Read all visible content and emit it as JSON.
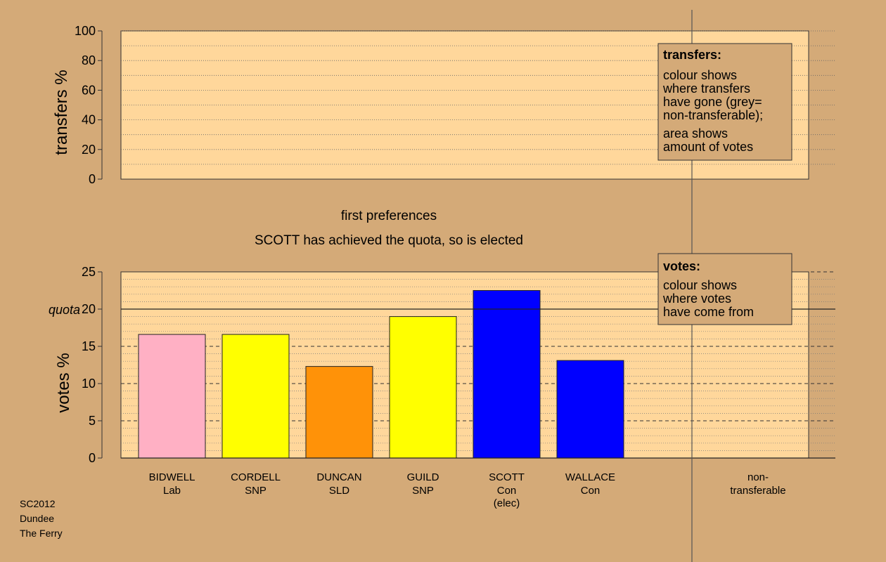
{
  "footer": {
    "line1": "SC2012",
    "line2": "Dundee",
    "line3": "The Ferry"
  },
  "status": {
    "stage": "first preferences",
    "message": "SCOTT has achieved the quota, so is elected"
  },
  "legend_transfers": {
    "title": "transfers:",
    "lines": [
      "colour shows",
      "where transfers",
      "have gone (grey=",
      "non-transferable);"
    ],
    "lines2": [
      "area shows",
      "amount of votes"
    ]
  },
  "legend_votes": {
    "title": "votes:",
    "lines": [
      "colour shows",
      "where votes",
      "have come from"
    ]
  },
  "colors": {
    "background": "#D4AA78",
    "panel": "#FFD79B",
    "legend_box": "#D4AA78",
    "Lab": "#FFB0C4",
    "SNP": "#FFFF00",
    "SLD": "#FF9208",
    "Con": "#0000FF"
  },
  "chart_data": [
    {
      "type": "bar",
      "name": "transfers",
      "ylabel": "transfers %",
      "ylim": [
        0,
        100
      ],
      "yticks": [
        0,
        20,
        40,
        60,
        80,
        100
      ],
      "grid": true,
      "values": []
    },
    {
      "type": "bar",
      "name": "votes",
      "ylabel": "votes %",
      "ylim": [
        0,
        25
      ],
      "yticks": [
        0,
        5,
        10,
        15,
        20,
        25
      ],
      "quota": 20,
      "quota_label": "quota",
      "grid": true,
      "categories": [
        {
          "name": "BIDWELL",
          "party": "Lab",
          "note": ""
        },
        {
          "name": "CORDELL",
          "party": "SNP",
          "note": ""
        },
        {
          "name": "DUNCAN",
          "party": "SLD",
          "note": ""
        },
        {
          "name": "GUILD",
          "party": "SNP",
          "note": ""
        },
        {
          "name": "SCOTT",
          "party": "Con",
          "note": "(elec)"
        },
        {
          "name": "WALLACE",
          "party": "Con",
          "note": ""
        }
      ],
      "values": [
        16.6,
        16.6,
        12.3,
        19.0,
        22.5,
        13.1
      ],
      "extra_category": {
        "line1": "non-",
        "line2": "transferable"
      }
    }
  ]
}
